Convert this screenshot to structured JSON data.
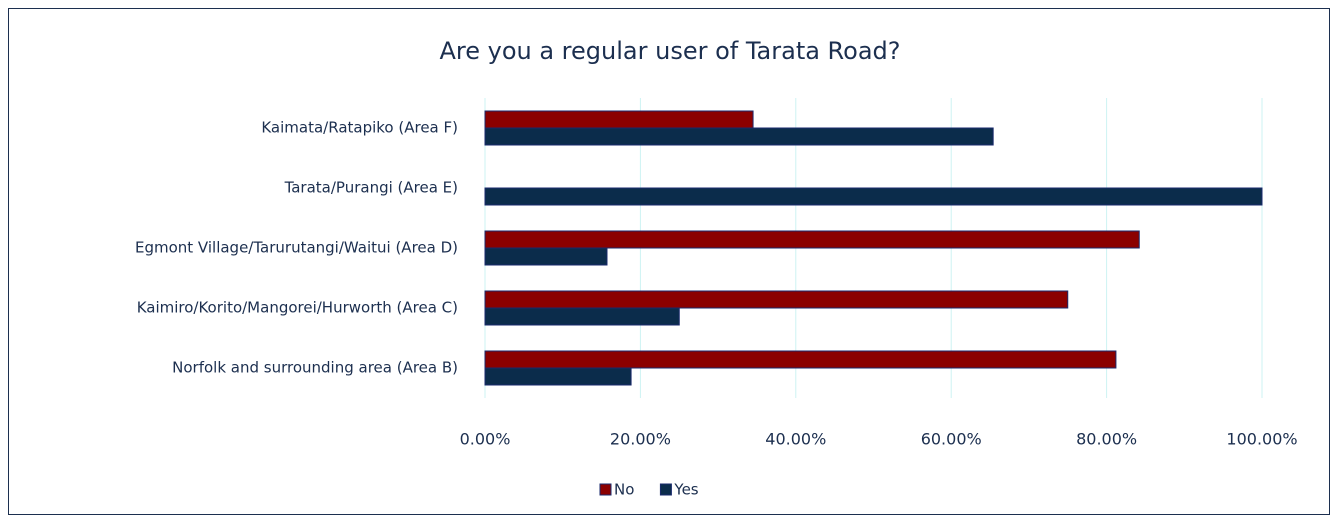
{
  "chart_data": {
    "type": "bar",
    "orientation": "horizontal",
    "title": "Are you a regular user of Tarata Road?",
    "categories": [
      "Kaimata/Ratapiko (Area F)",
      "Tarata/Purangi (Area E)",
      "Egmont Village/Tarurutangi/Waitui (Area D)",
      "Kaimiro/Korito/Mangorei/Hurworth (Area C)",
      "Norfolk and surrounding area (Area B)"
    ],
    "series": [
      {
        "name": "No",
        "color": "#8b0000",
        "values": [
          34.5,
          0,
          84.2,
          75.0,
          81.2
        ]
      },
      {
        "name": "Yes",
        "color": "#0b2c4b",
        "values": [
          65.4,
          100,
          15.7,
          25.0,
          18.8
        ]
      }
    ],
    "xlim": [
      0,
      100
    ],
    "xticks": [
      {
        "value": 0,
        "label": "0.00%"
      },
      {
        "value": 20,
        "label": "20.00%"
      },
      {
        "value": 40,
        "label": "40.00%"
      },
      {
        "value": 60,
        "label": "60.00%"
      },
      {
        "value": 80,
        "label": "80.00%"
      },
      {
        "value": 100,
        "label": "100.00%"
      }
    ],
    "grid": true,
    "legend": "bottom"
  }
}
